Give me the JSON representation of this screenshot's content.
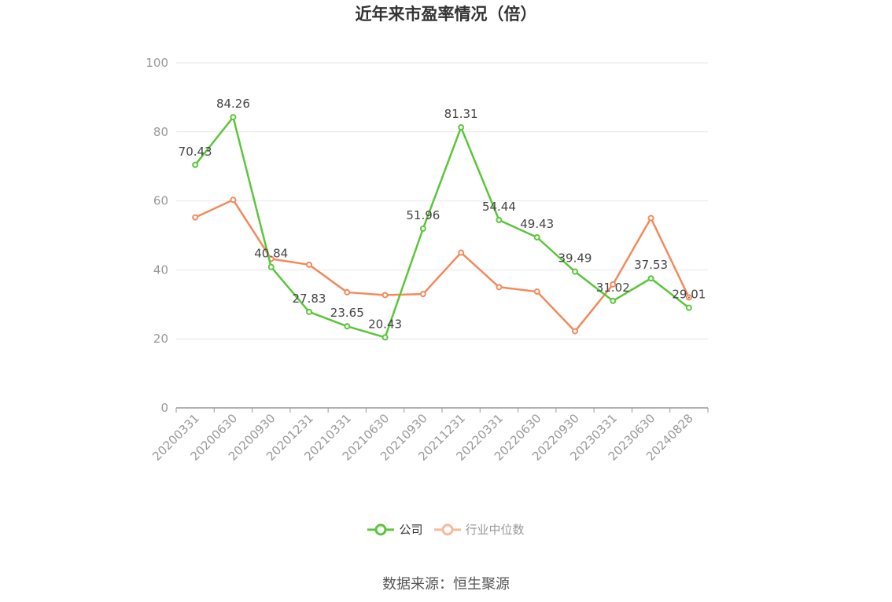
{
  "title": "近年来市盈率情况（倍）",
  "source_note": "数据来源：恒生聚源",
  "colors": {
    "company": "#5ac63a",
    "industry": "#f28a5b",
    "grid": "#e6e6ee",
    "axis": "#999999"
  },
  "chart_data": {
    "type": "line",
    "title": "近年来市盈率情况（倍）",
    "categories": [
      "20200331",
      "20200630",
      "20200930",
      "20201231",
      "20210331",
      "20210630",
      "20210930",
      "20211231",
      "20220331",
      "20220630",
      "20220930",
      "20230331",
      "20230630",
      "20240828"
    ],
    "ylim": [
      0,
      100
    ],
    "yticks": [
      0,
      20,
      40,
      60,
      80,
      100
    ],
    "grid": true,
    "legend_position": "bottom",
    "series": [
      {
        "name": "公司",
        "color": "#5ac63a",
        "show_labels": true,
        "values": [
          70.43,
          84.26,
          40.84,
          27.83,
          23.65,
          20.43,
          51.96,
          81.31,
          54.44,
          49.43,
          39.49,
          31.02,
          37.53,
          29.01
        ],
        "labels": [
          "70.43",
          "84.26",
          "40.84",
          "27.83",
          "23.65",
          "20.43",
          "51.96",
          "81.31",
          "54.44",
          "49.43",
          "39.49",
          "31.02",
          "37.53",
          "29.01"
        ]
      },
      {
        "name": "行业中位数",
        "color": "#f28a5b",
        "show_labels": false,
        "values": [
          55.2,
          60.3,
          43.2,
          41.5,
          33.5,
          32.7,
          33.0,
          45.0,
          35.0,
          33.7,
          22.2,
          35.8,
          55.0,
          32.0
        ]
      }
    ]
  }
}
